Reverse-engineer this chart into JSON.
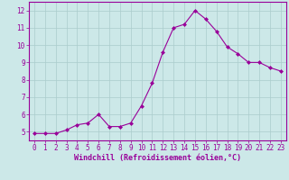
{
  "x": [
    0,
    1,
    2,
    3,
    4,
    5,
    6,
    7,
    8,
    9,
    10,
    11,
    12,
    13,
    14,
    15,
    16,
    17,
    18,
    19,
    20,
    21,
    22,
    23
  ],
  "y": [
    4.9,
    4.9,
    4.9,
    5.1,
    5.4,
    5.5,
    6.0,
    5.3,
    5.3,
    5.5,
    6.5,
    7.8,
    9.6,
    11.0,
    11.2,
    12.0,
    11.5,
    10.8,
    9.9,
    9.5,
    9.0,
    9.0,
    8.7,
    8.5
  ],
  "line_color": "#990099",
  "marker": "D",
  "marker_size": 2.0,
  "bg_color": "#cce8e8",
  "grid_color": "#aacccc",
  "xlabel": "Windchill (Refroidissement éolien,°C)",
  "ylim": [
    4.5,
    12.5
  ],
  "xlim": [
    -0.5,
    23.5
  ],
  "yticks": [
    5,
    6,
    7,
    8,
    9,
    10,
    11,
    12
  ],
  "xticks": [
    0,
    1,
    2,
    3,
    4,
    5,
    6,
    7,
    8,
    9,
    10,
    11,
    12,
    13,
    14,
    15,
    16,
    17,
    18,
    19,
    20,
    21,
    22,
    23
  ],
  "xlabel_color": "#990099",
  "tick_color": "#990099",
  "spine_color": "#990099",
  "label_fontsize": 5.8,
  "tick_fontsize": 5.5,
  "xlabel_fontsize": 6.0
}
